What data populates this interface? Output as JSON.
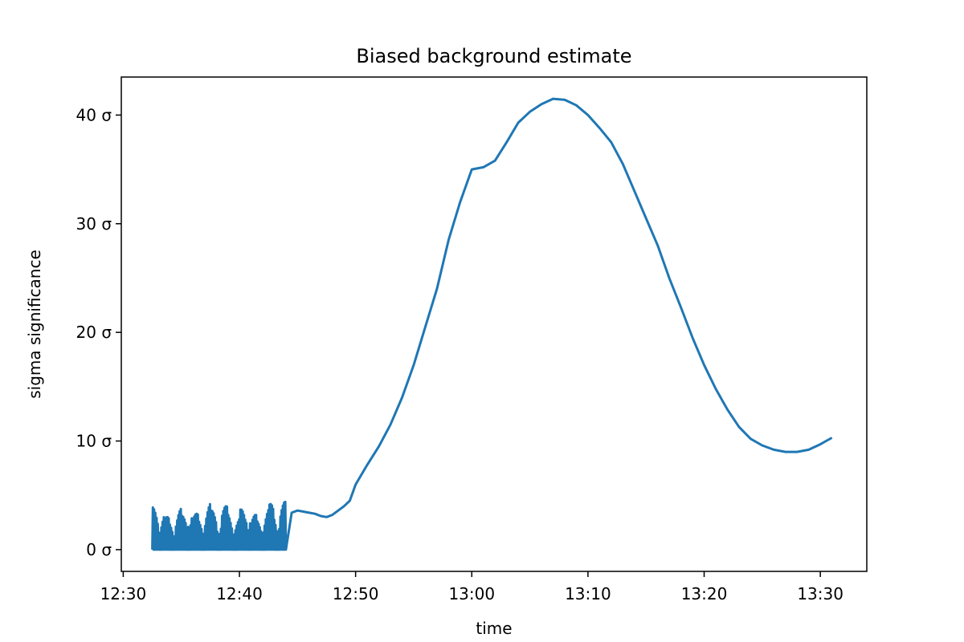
{
  "chart_data": {
    "type": "line",
    "title": "Biased background estimate",
    "xlabel": "time",
    "ylabel": "sigma significance",
    "x_unit": "time (HH:MM)",
    "xlim": [
      "12:29:50",
      "13:34:00"
    ],
    "ylim": [
      -2,
      43.5
    ],
    "x_ticks": [
      "12:30",
      "12:40",
      "12:50",
      "13:00",
      "13:10",
      "13:20",
      "13:30"
    ],
    "y_ticks": [
      0,
      10,
      20,
      30,
      40
    ],
    "y_tick_labels": [
      "0 σ",
      "10 σ",
      "20 σ",
      "30 σ",
      "40 σ"
    ],
    "grid": false,
    "legend": false,
    "series": [
      {
        "color": "#1f77b4",
        "x": [
          "12:32:30",
          "12:33:00",
          "12:33:30",
          "12:34:00",
          "12:34:30",
          "12:35:00",
          "12:35:30",
          "12:36:00",
          "12:36:30",
          "12:37:00",
          "12:37:30",
          "12:38:00",
          "12:38:30",
          "12:39:00",
          "12:39:30",
          "12:40:00",
          "12:40:30",
          "12:41:00",
          "12:41:30",
          "12:42:00",
          "12:42:30",
          "12:43:00",
          "12:43:30",
          "12:44:00",
          "12:44:30",
          "12:45:00",
          "12:45:30",
          "12:46:00",
          "12:46:30",
          "12:47:00",
          "12:47:30",
          "12:48:00",
          "12:48:30",
          "12:49:00",
          "12:49:30",
          "12:50:00",
          "12:51:00",
          "12:52:00",
          "12:53:00",
          "12:54:00",
          "12:55:00",
          "12:56:00",
          "12:57:00",
          "12:58:00",
          "12:59:00",
          "13:00:00",
          "13:01:00",
          "13:02:00",
          "13:03:00",
          "13:04:00",
          "13:05:00",
          "13:06:00",
          "13:07:00",
          "13:08:00",
          "13:09:00",
          "13:10:00",
          "13:11:00",
          "13:12:00",
          "13:13:00",
          "13:14:00",
          "13:15:00",
          "13:16:00",
          "13:17:00",
          "13:18:00",
          "13:19:00",
          "13:20:00",
          "13:21:00",
          "13:22:00",
          "13:23:00",
          "13:24:00",
          "13:25:00",
          "13:26:00",
          "13:27:00",
          "13:28:00",
          "13:29:00",
          "13:30:00",
          "13:30:30",
          "13:31:00"
        ],
        "y": [
          1.5,
          2.0,
          1.8,
          2.2,
          2.0,
          1.9,
          2.4,
          2.1,
          1.8,
          2.3,
          2.0,
          2.2,
          1.9,
          2.4,
          2.1,
          1.9,
          2.2,
          2.0,
          2.4,
          2.1,
          1.8,
          2.3,
          2.6,
          3.2,
          3.4,
          3.6,
          3.5,
          3.4,
          3.3,
          3.1,
          3.0,
          3.2,
          3.6,
          4.0,
          4.5,
          6.0,
          7.8,
          9.5,
          11.5,
          14.0,
          17.0,
          20.5,
          24.0,
          28.5,
          32.0,
          35.0,
          35.2,
          35.8,
          37.5,
          39.3,
          40.3,
          41.0,
          41.5,
          41.4,
          40.9,
          40.0,
          38.8,
          37.5,
          35.5,
          33.0,
          30.5,
          28.0,
          25.0,
          22.3,
          19.5,
          17.0,
          14.8,
          12.9,
          11.3,
          10.2,
          9.6,
          9.2,
          9.0,
          9.0,
          9.2,
          9.7,
          10.0,
          10.3
        ],
        "noise_until": "12:44:00",
        "noise_floor": 0.0,
        "noise_peaks": [
          3.9,
          3.5,
          3.0,
          2.6,
          3.8,
          3.1,
          4.2,
          3.3,
          2.8,
          4.3,
          3.6,
          3.0,
          4.0,
          3.4,
          2.9,
          3.7,
          4.1,
          3.2,
          2.7,
          3.9,
          4.2,
          3.5,
          4.4
        ]
      }
    ]
  }
}
